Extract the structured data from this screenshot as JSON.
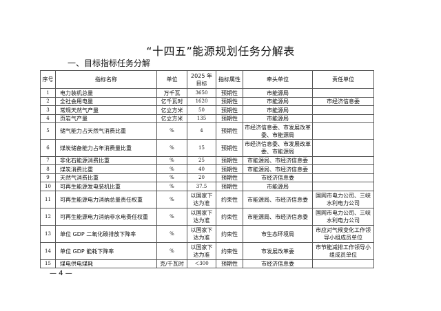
{
  "title": "“十四五”能源规划任务分解表",
  "section": "一、目标指标任务分解",
  "headers": [
    "序号",
    "指标名称",
    "单位",
    "2025 年目标",
    "指标属性",
    "牵头单位",
    "责任单位"
  ],
  "rows": [
    {
      "no": "1",
      "name": "电力装机总量",
      "unit": "万千瓦",
      "target": "3650",
      "attr": "预期性",
      "lead": "市能源局",
      "resp": ""
    },
    {
      "no": "2",
      "name": "全社会用电量",
      "unit": "亿千瓦时",
      "target": "1620",
      "attr": "预期性",
      "lead": "市能源局",
      "resp": "市经济信息委"
    },
    {
      "no": "3",
      "name": "常规天然气产量",
      "unit": "亿立方米",
      "target": "50",
      "attr": "预期性",
      "lead": "市能源局",
      "resp": ""
    },
    {
      "no": "4",
      "name": "页岩气产量",
      "unit": "亿立方米",
      "target": "135",
      "attr": "预期性",
      "lead": "市能源局",
      "resp": ""
    },
    {
      "no": "5",
      "name": "储气能力占天然气消费比重",
      "unit": "%",
      "target": "4",
      "attr": "预期性",
      "lead": "市经济信息委、市发展改革委、市能源局",
      "resp": ""
    },
    {
      "no": "6",
      "name": "煤炭储备能力占年消费量比重",
      "unit": "%",
      "target": "15",
      "attr": "预期性",
      "lead": "市经济信息委、市发展改革委、市能源局",
      "resp": ""
    },
    {
      "no": "7",
      "name": "非化石能源消费比重",
      "unit": "%",
      "target": "25",
      "attr": "预期性",
      "lead": "市能源局、市经济信息委",
      "resp": ""
    },
    {
      "no": "8",
      "name": "煤炭消费比重",
      "unit": "%",
      "target": "40",
      "attr": "预期性",
      "lead": "市能源局、市经济信息委",
      "resp": ""
    },
    {
      "no": "9",
      "name": "天然气消费比重",
      "unit": "%",
      "target": "20",
      "attr": "预期性",
      "lead": "市经济信息委",
      "resp": ""
    },
    {
      "no": "10",
      "name": "可再生能源发电装机比重",
      "unit": "%",
      "target": "37.5",
      "attr": "预期性",
      "lead": "市能源局",
      "resp": ""
    },
    {
      "no": "11",
      "name": "可再生能源电力消纳总量责任权重",
      "unit": "%",
      "target": "以国家下达为准",
      "attr": "约束性",
      "lead": "市能源局、市经济信息委",
      "resp": "国网市电力公司、三峡水利电力公司"
    },
    {
      "no": "12",
      "name": "可再生能源电力消纳非水电责任权重",
      "unit": "%",
      "target": "以国家下达为准",
      "attr": "约束性",
      "lead": "市能源局、市经济信息委",
      "resp": "国网市电力公司、三峡水利电力公司"
    },
    {
      "no": "13",
      "name": "单位 GDP 二氧化碳排放下降率",
      "unit": "%",
      "target": "以国家下达为准",
      "attr": "约束性",
      "lead": "市生态环境局",
      "resp": "市应对气候变化工作领导小组成员单位"
    },
    {
      "no": "14",
      "name": "单位 GDP 能耗下降率",
      "unit": "%",
      "target": "以国家下达为准",
      "attr": "约束性",
      "lead": "市发展改革委",
      "resp": "市节能减排工作领导小组成员单位"
    },
    {
      "no": "15",
      "name": "煤电供电煤耗",
      "unit": "克/千瓦时",
      "target": "＜300",
      "attr": "预期性",
      "lead": "市经济信息委",
      "resp": ""
    }
  ],
  "page_number": "— 4 —"
}
